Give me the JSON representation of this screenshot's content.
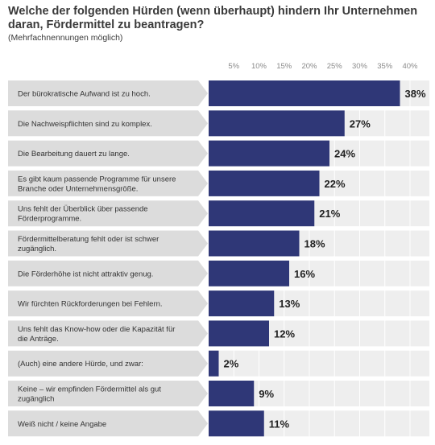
{
  "title": "Welche der folgenden Hürden (wenn überhaupt) hindern Ihr Unternehmen daran, Fördermittel zu beantragen?",
  "subtitle": "(Mehrfachnennungen möglich)",
  "colors": {
    "bar": "#2f3777",
    "band_left": "#dcdcdc",
    "band_right": "#eeeeee",
    "grid": "#ffffff"
  },
  "chart_data": {
    "type": "bar",
    "orientation": "horizontal",
    "title": "Welche der folgenden Hürden (wenn überhaupt) hindern Ihr Unternehmen daran, Fördermittel zu beantragen?",
    "subtitle": "(Mehrfachnennungen möglich)",
    "xlim": [
      0,
      40
    ],
    "xticks": [
      5,
      10,
      15,
      20,
      25,
      30,
      35,
      40
    ],
    "xtick_labels": [
      "5%",
      "10%",
      "15%",
      "20%",
      "25%",
      "30%",
      "35%",
      "40%"
    ],
    "categories": [
      [
        "Der bürokratische Aufwand ist zu hoch."
      ],
      [
        "Die Nachweispflichten sind zu komplex."
      ],
      [
        "Die Bearbeitung dauert zu lange."
      ],
      [
        "Es gibt kaum passende Programme für unsere",
        "Branche oder Unternehmensgröße."
      ],
      [
        "Uns fehlt der Überblick über passende",
        "Förderprogramme."
      ],
      [
        "Fördermittelberatung fehlt oder ist schwer",
        "zugänglich."
      ],
      [
        "Die Förderhöhe ist nicht attraktiv genug."
      ],
      [
        "Wir fürchten Rückforderungen bei Fehlern."
      ],
      [
        "Uns fehlt das Know-how oder die Kapazität für",
        "die Anträge."
      ],
      [
        "(Auch) eine andere Hürde, und zwar:"
      ],
      [
        "Keine – wir empfinden Fördermittel als gut",
        "zugänglich"
      ],
      [
        "Weiß nicht / keine Angabe"
      ]
    ],
    "values": [
      38,
      27,
      24,
      22,
      21,
      18,
      16,
      13,
      12,
      2,
      9,
      11
    ],
    "value_labels": [
      "38%",
      "27%",
      "24%",
      "22%",
      "21%",
      "18%",
      "16%",
      "13%",
      "12%",
      "2%",
      "9%",
      "11%"
    ]
  }
}
